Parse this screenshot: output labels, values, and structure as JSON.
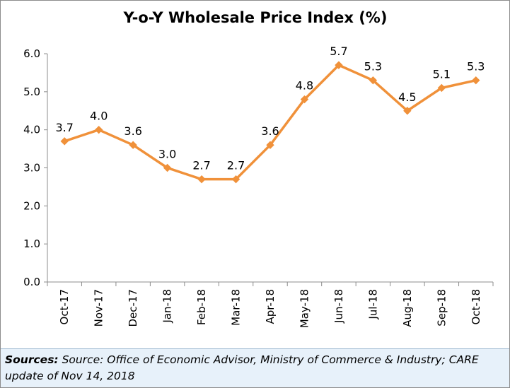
{
  "chart_data": {
    "type": "line",
    "title": "Y-o-Y Wholesale Price Index (%)",
    "xlabel": "",
    "ylabel": "",
    "categories": [
      "Oct-17",
      "Nov-17",
      "Dec-17",
      "Jan-18",
      "Feb-18",
      "Mar-18",
      "Apr-18",
      "May-18",
      "Jun-18",
      "Jul-18",
      "Aug-18",
      "Sep-18",
      "Oct-18"
    ],
    "series": [
      {
        "values": [
          3.7,
          4.0,
          3.6,
          3.0,
          2.7,
          2.7,
          3.6,
          4.8,
          5.7,
          5.3,
          4.5,
          5.1,
          5.3
        ],
        "labels": [
          "3.7",
          "4.0",
          "3.6",
          "3.0",
          "2.7",
          "2.7",
          "3.6",
          "4.8",
          "5.7",
          "5.3",
          "4.5",
          "5.1",
          "5.3"
        ],
        "color": "#f0913a",
        "marker": "diamond"
      }
    ],
    "ylim": [
      0,
      6
    ],
    "yticks": [
      "0.0",
      "1.0",
      "2.0",
      "3.0",
      "4.0",
      "5.0",
      "6.0"
    ],
    "grid": false,
    "legend": "none",
    "axis_color": "#8c8c8c"
  },
  "source": {
    "label": "Sources:",
    "text": "Source: Office of Economic Advisor, Ministry of Commerce & Industry; CARE update of Nov 14, 2018"
  }
}
